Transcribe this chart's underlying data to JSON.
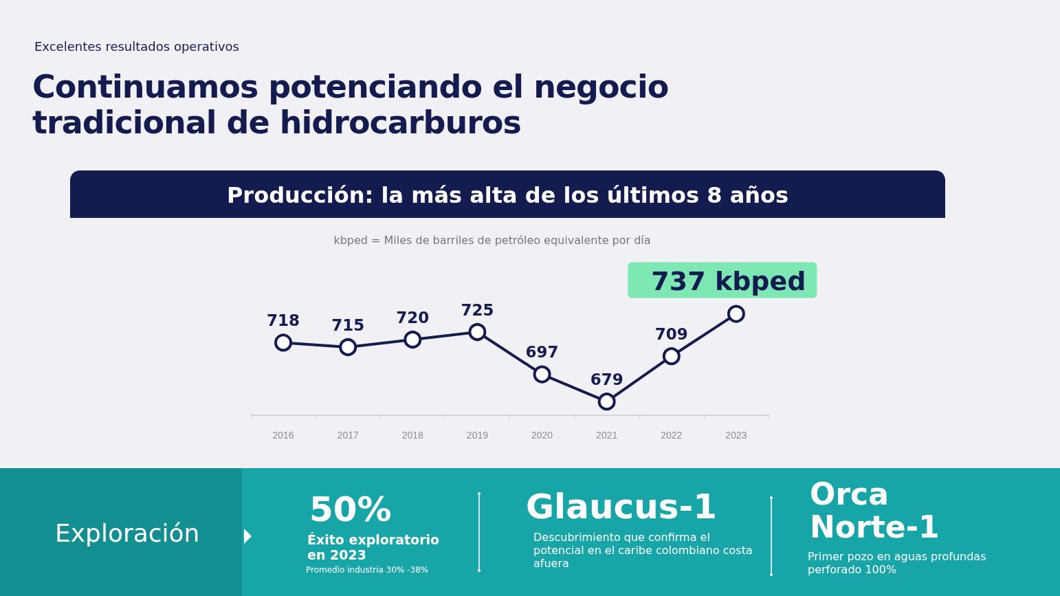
{
  "chart_data": {
    "type": "line",
    "title": "Continuamos potenciando el negocio tradicional de hidrocarburos",
    "subtitle": "Excelentes resultados operativos",
    "annotations": [
      "Producción: la más alta de los últimos 8 años",
      "kbped = Miles de barriles de petróleo equivalente por día",
      "Exploración",
      "50%",
      "Éxito exploratorio en 2023",
      "Promedio industria 30% -38%",
      "Glaucus-1",
      "Descubrimiento que confirma el potencial en el caribe colombiano costa afuera",
      "Orca Norte-1",
      "Primer pozo en aguas profundas perforado 100%"
    ],
    "categories": [
      "2016",
      "2017",
      "2018",
      "2019",
      "2020",
      "2021",
      "2022",
      "2023"
    ],
    "values": [
      718,
      715,
      720,
      725,
      697,
      679,
      709,
      737
    ],
    "value_labels": [
      "718",
      "715",
      "720",
      "725",
      "697",
      "679",
      "709",
      "737 kbped"
    ],
    "color": "#141c4f",
    "marker": "circle",
    "line_style": "solid"
  }
}
